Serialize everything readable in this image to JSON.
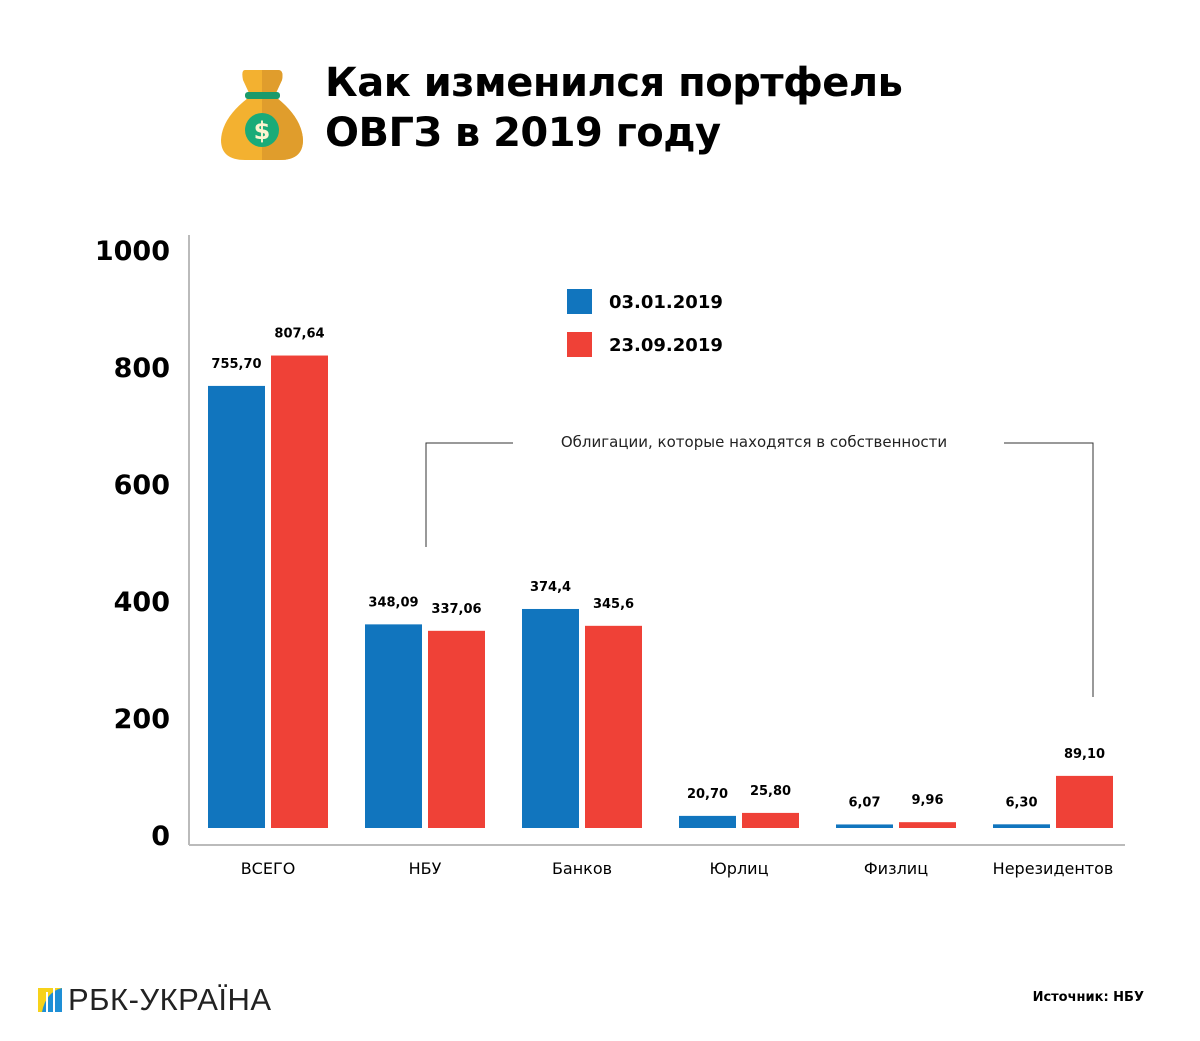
{
  "header": {
    "title_line1": "Как изменился портфель",
    "title_line2": "ОВГЗ в 2019 году",
    "icon": "money-bag-icon"
  },
  "chart_data": {
    "type": "bar",
    "title": "Как изменился портфель ОВГЗ в 2019 году",
    "categories": [
      "ВСЕГО",
      "НБУ",
      "Банков",
      "Юрлиц",
      "Физлиц",
      "Нерезидентов"
    ],
    "series": [
      {
        "name": "03.01.2019",
        "color": "#1175be",
        "values": [
          755.7,
          348.09,
          374.4,
          20.7,
          6.07,
          6.3
        ],
        "labels": [
          "755,70",
          "348,09",
          "374,4",
          "20,70",
          "6,07",
          "6,30"
        ]
      },
      {
        "name": "23.09.2019",
        "color": "#ef4137",
        "values": [
          807.64,
          337.06,
          345.6,
          25.8,
          9.96,
          89.1
        ],
        "labels": [
          "807,64",
          "337,06",
          "345,6",
          "25,80",
          "9,96",
          "89,10"
        ]
      }
    ],
    "yticks": [
      "0",
      "200",
      "400",
      "600",
      "800",
      "1000"
    ],
    "ylim": [
      0,
      1000
    ],
    "grid": false,
    "legend_placement": "top-center",
    "annotation": "Облигации, которые находятся в собственности"
  },
  "footer": {
    "brand": "РБК-УКРАЇНА",
    "source": "Источник: НБУ"
  }
}
